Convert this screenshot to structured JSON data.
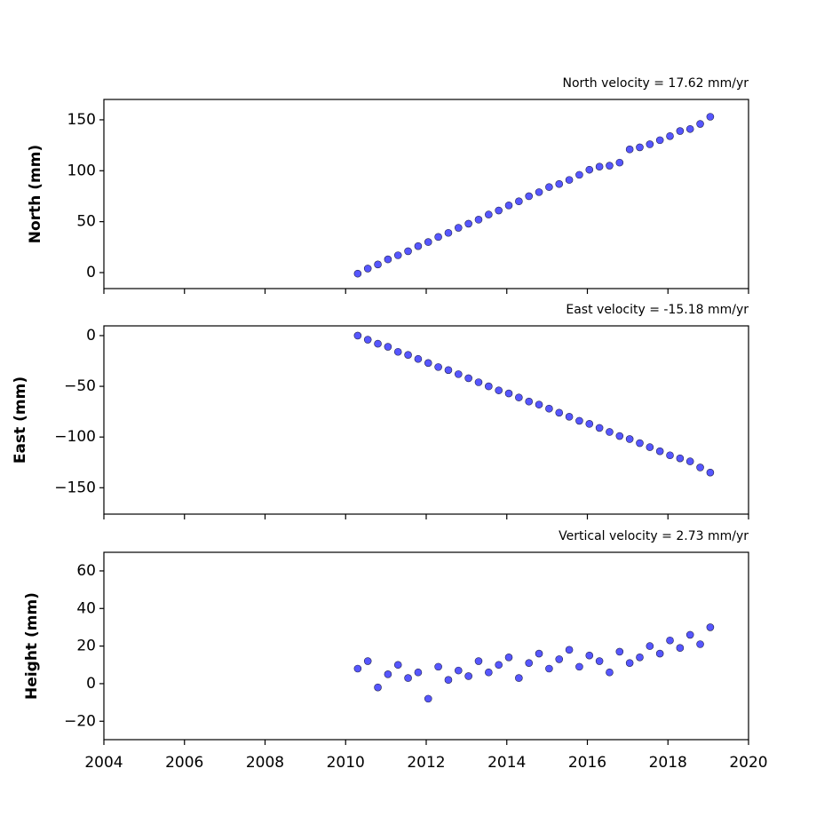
{
  "chart_data": [
    {
      "type": "scatter",
      "title": "North velocity = 17.62 mm/yr",
      "ylabel": "North (mm)",
      "x": [
        2010.3,
        2010.55,
        2010.8,
        2011.05,
        2011.3,
        2011.55,
        2011.8,
        2012.05,
        2012.3,
        2012.55,
        2012.8,
        2013.05,
        2013.3,
        2013.55,
        2013.8,
        2014.05,
        2014.3,
        2014.55,
        2014.8,
        2015.05,
        2015.3,
        2015.55,
        2015.8,
        2016.05,
        2016.3,
        2016.55,
        2016.8,
        2017.05,
        2017.3,
        2017.55,
        2017.8,
        2018.05,
        2018.3,
        2018.55,
        2018.8,
        2019.05
      ],
      "values": [
        -1,
        4,
        8,
        13,
        17,
        21,
        26,
        30,
        35,
        39,
        44,
        48,
        52,
        57,
        61,
        66,
        70,
        75,
        79,
        84,
        87,
        91,
        96,
        101,
        104,
        105,
        108,
        121,
        123,
        126,
        130,
        134,
        139,
        141,
        146,
        153
      ],
      "color": "#5656ff",
      "xlim": [
        2004,
        2020
      ],
      "ylim": [
        -15.7,
        170
      ],
      "yticks": [
        0,
        50,
        100,
        150
      ]
    },
    {
      "type": "scatter",
      "title": "East velocity = -15.18 mm/yr",
      "ylabel": "East (mm)",
      "x": [
        2010.3,
        2010.55,
        2010.8,
        2011.05,
        2011.3,
        2011.55,
        2011.8,
        2012.05,
        2012.3,
        2012.55,
        2012.8,
        2013.05,
        2013.3,
        2013.55,
        2013.8,
        2014.05,
        2014.3,
        2014.55,
        2014.8,
        2015.05,
        2015.3,
        2015.55,
        2015.8,
        2016.05,
        2016.3,
        2016.55,
        2016.8,
        2017.05,
        2017.3,
        2017.55,
        2017.8,
        2018.05,
        2018.3,
        2018.55,
        2018.8,
        2019.05
      ],
      "values": [
        0,
        -4,
        -8,
        -11,
        -16,
        -19,
        -23,
        -27,
        -31,
        -34,
        -38,
        -42,
        -46,
        -50,
        -54,
        -57,
        -61,
        -65,
        -68,
        -72,
        -76,
        -80,
        -84,
        -87,
        -91,
        -95,
        -99,
        -102,
        -106,
        -110,
        -114,
        -118,
        -121,
        -124,
        -130,
        -135
      ],
      "color": "#5656ff",
      "xlim": [
        2004,
        2020
      ],
      "ylim": [
        -176,
        9.6
      ],
      "yticks": [
        {
          "value": -150,
          "label": "−150"
        },
        {
          "value": -100,
          "label": "−100"
        },
        {
          "value": -50,
          "label": "−50"
        },
        0
      ]
    },
    {
      "type": "scatter",
      "title": "Vertical velocity = 2.73 mm/yr",
      "ylabel": "Height (mm)",
      "x": [
        2010.3,
        2010.55,
        2010.8,
        2011.05,
        2011.3,
        2011.55,
        2011.8,
        2012.05,
        2012.3,
        2012.55,
        2012.8,
        2013.05,
        2013.3,
        2013.55,
        2013.8,
        2014.05,
        2014.3,
        2014.55,
        2014.8,
        2015.05,
        2015.3,
        2015.55,
        2015.8,
        2016.05,
        2016.3,
        2016.55,
        2016.8,
        2017.05,
        2017.3,
        2017.55,
        2017.8,
        2018.05,
        2018.3,
        2018.55,
        2018.8,
        2019.05
      ],
      "values": [
        8,
        12,
        -2,
        5,
        10,
        3,
        6,
        -8,
        9,
        2,
        7,
        4,
        12,
        6,
        10,
        14,
        3,
        11,
        16,
        8,
        13,
        18,
        9,
        15,
        12,
        6,
        17,
        11,
        14,
        20,
        16,
        23,
        19,
        26,
        21,
        30
      ],
      "color": "#5656ff",
      "xlim": [
        2004,
        2020
      ],
      "ylim": [
        -29.8,
        69.9
      ],
      "yticks": [
        {
          "value": -20,
          "label": "−20"
        },
        0,
        20,
        40,
        60
      ],
      "xticks": [
        2004,
        2006,
        2008,
        2010,
        2012,
        2014,
        2016,
        2018,
        2020
      ]
    }
  ]
}
